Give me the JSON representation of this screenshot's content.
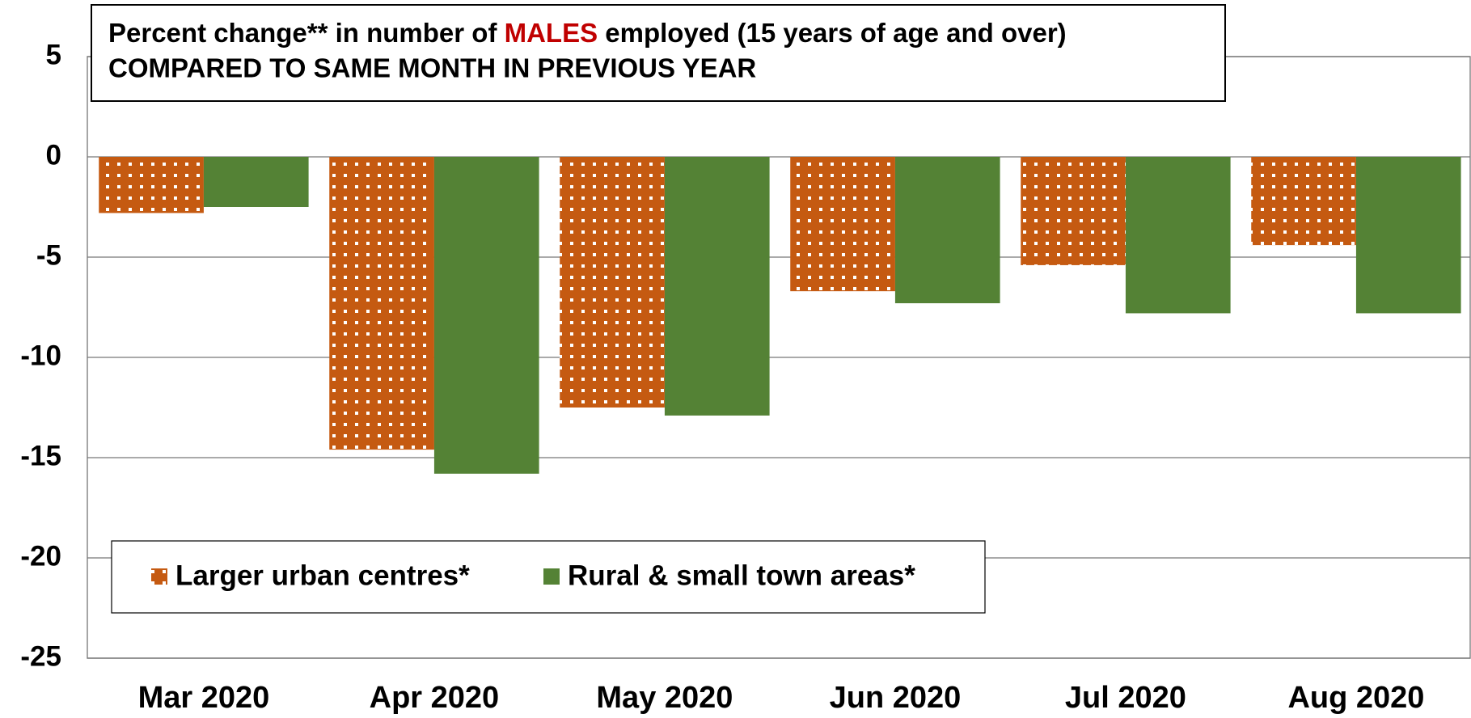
{
  "chart_data": {
    "type": "bar",
    "title": [
      "Percent change** in number of ",
      "MALES",
      " employed (15 years of age and over)"
    ],
    "title_colors": [
      "#000000",
      "#c00000",
      "#000000"
    ],
    "subtitle": "COMPARED TO SAME MONTH IN PREVIOUS YEAR",
    "subtitle_color": "#4472c4",
    "categories": [
      "Mar 2020",
      "Apr 2020",
      "May 2020",
      "Jun 2020",
      "Jul 2020",
      "Aug 2020"
    ],
    "series": [
      {
        "name": "Larger urban centres*",
        "color": "#c55a11",
        "pattern": "dots",
        "values": [
          -2.8,
          -14.6,
          -12.5,
          -6.7,
          -5.4,
          -4.4
        ]
      },
      {
        "name": "Rural & small town areas*",
        "color": "#548235",
        "values": [
          -2.5,
          -15.8,
          -12.9,
          -7.3,
          -7.8,
          -7.8
        ]
      }
    ],
    "ylim": [
      -25,
      5
    ],
    "yticks": [
      5,
      0,
      -5,
      -10,
      -15,
      -20,
      -25
    ],
    "grid": true
  }
}
